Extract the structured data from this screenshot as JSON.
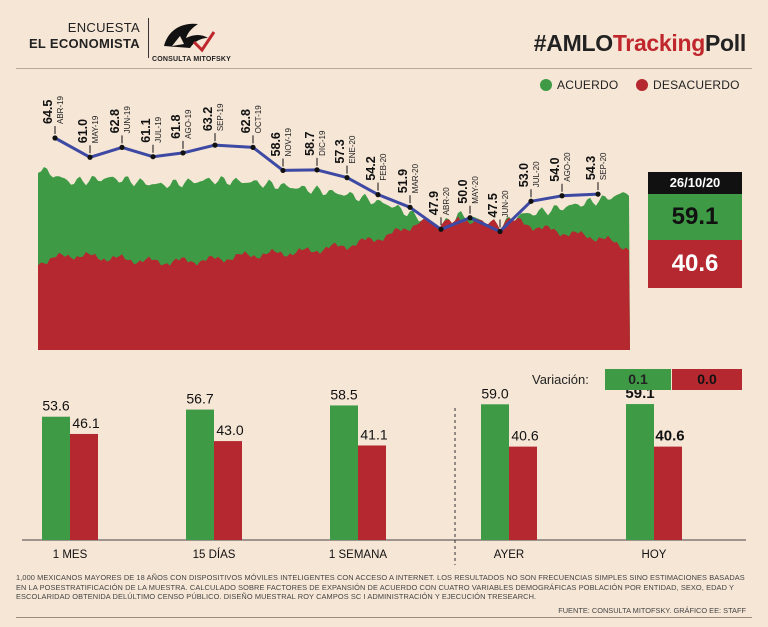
{
  "header": {
    "line1": "ENCUESTA",
    "line2": "EL ECONOMISTA",
    "logo_text": "CONSULTA MITOFSKY",
    "hashtag_prefix": "#AMLO",
    "hashtag_red": "Tracking",
    "hashtag_suffix": "Poll"
  },
  "legend": {
    "agree_label": "ACUERDO",
    "disagree_label": "DESACUERDO",
    "agree_color": "#3e9a45",
    "disagree_color": "#b5282f"
  },
  "current": {
    "date": "26/10/20",
    "agree": "59.1",
    "disagree": "40.6"
  },
  "chart_data": [
    {
      "type": "line",
      "series": [
        {
          "values": [
            64.5,
            61.0,
            62.8,
            61.1,
            61.8,
            63.2,
            62.8,
            58.6,
            58.7,
            57.3,
            54.2,
            51.9,
            47.9,
            50.0,
            47.5,
            53.0,
            54.0,
            54.3
          ]
        }
      ],
      "x": [
        "ABR-19",
        "MAY-19",
        "JUN-19",
        "JUL-19",
        "AGO-19",
        "SEP-19",
        "OCT-19",
        "NOV-19",
        "DIC-19",
        "ENE-20",
        "FEB-20",
        "MAR-20",
        "ABR-20",
        "MAY-20",
        "JUN-20",
        "JUL-20",
        "AGO-20",
        "SEP-20"
      ],
      "background_area": "daily agree / disagree share (green / red)"
    },
    {
      "type": "bar",
      "categories": [
        "1 MES",
        "15 DÍAS",
        "1 SEMANA",
        "AYER",
        "HOY"
      ],
      "series": [
        {
          "values": [
            53.6,
            56.7,
            58.5,
            59.0,
            59.1
          ],
          "color": "#3e9a45"
        },
        {
          "values": [
            46.1,
            43.0,
            41.1,
            40.6,
            40.6
          ],
          "color": "#b5282f"
        }
      ],
      "ylim": [
        0,
        65
      ]
    }
  ],
  "line_labels": [
    "64.5",
    "61.0",
    "62.8",
    "61.1",
    "61.8",
    "63.2",
    "62.8",
    "58.6",
    "58.7",
    "57.3",
    "54.2",
    "51.9",
    "47.9",
    "50.0",
    "47.5",
    "53.0",
    "54.0",
    "54.3"
  ],
  "bar_labels": {
    "agree": [
      "53.6",
      "56.7",
      "58.5",
      "59.0",
      "59.1"
    ],
    "disagree": [
      "46.1",
      "43.0",
      "41.1",
      "40.6",
      "40.6"
    ]
  },
  "variation": {
    "label": "Variación:",
    "agree": "0.1",
    "disagree": "0.0"
  },
  "footnote": "1,000 MEXICANOS MAYORES DE 18 AÑOS CON DISPOSITIVOS MÓVILES INTELIGENTES CON ACCESO A INTERNET. LOS RESULTADOS NO SON FRECUENCIAS SIMPLES SINO ESTIMACIONES BASADAS EN LA POSESTRATIFICACIÓN DE LA MUESTRA. CALCULADO SOBRE FACTORES DE EXPANSIÓN DE ACUERDO CON CUATRO VARIABLES DEMOGRÁFICAS POBLACIÓN POR ENTIDAD, SEXO, EDAD Y ESCOLARIDAD OBTENIDA DELÚLTIMO CENSO PÚBLICO. DISEÑO MUESTRAL ROY CAMPOS SC I ADMINISTRACIÓN Y EJECUCIÓN TRESEARCH.",
  "source": "FUENTE: CONSULTA MITOFSKY. GRÁFICO EE: STAFF"
}
